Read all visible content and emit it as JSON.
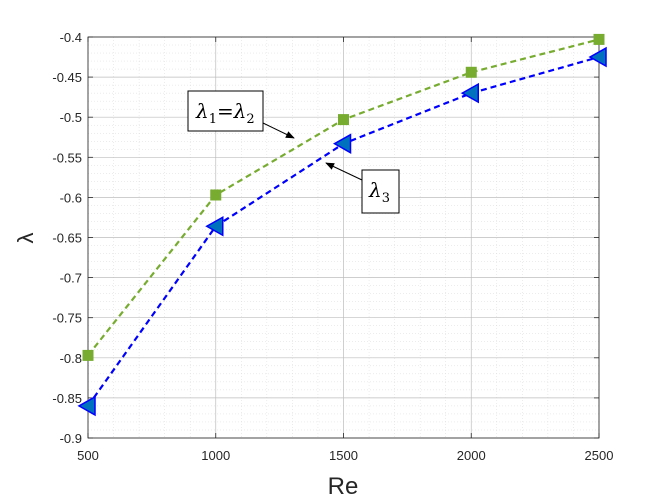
{
  "chart_data": {
    "type": "line",
    "xlabel": "Re",
    "ylabel": "λ",
    "xlim": [
      500,
      2500
    ],
    "ylim": [
      -0.9,
      -0.4
    ],
    "xticks": [
      500,
      1000,
      1500,
      2000,
      2500
    ],
    "xtick_labels": [
      "500",
      "1000",
      "1500",
      "2000",
      "2500"
    ],
    "yticks": [
      -0.9,
      -0.85,
      -0.8,
      -0.75,
      -0.7,
      -0.65,
      -0.6,
      -0.55,
      -0.5,
      -0.45,
      -0.4
    ],
    "ytick_labels": [
      "-0.9",
      "-0.85",
      "-0.8",
      "-0.75",
      "-0.7",
      "-0.65",
      "-0.6",
      "-0.55",
      "-0.5",
      "-0.45",
      "-0.4"
    ],
    "grid": true,
    "minor_grid": true,
    "x": [
      500,
      1000,
      1500,
      2000,
      2500
    ],
    "series": [
      {
        "values": [
          -0.797,
          -0.597,
          -0.503,
          -0.444,
          -0.403
        ],
        "color": "#77ac30",
        "marker": "square",
        "line": "dashed"
      },
      {
        "values": [
          -0.86,
          -0.636,
          -0.533,
          -0.47,
          -0.425
        ],
        "color": "#0000ff",
        "marker_fill": "#0072bd",
        "marker": "triangle-left",
        "line": "dashed"
      }
    ],
    "annotations": [
      {
        "base": "λ",
        "sub1": "1",
        "eq": "=",
        "base2": "λ",
        "sub2": "2",
        "target": "series-0"
      },
      {
        "base": "λ",
        "sub1": "3",
        "target": "series-1"
      }
    ]
  }
}
